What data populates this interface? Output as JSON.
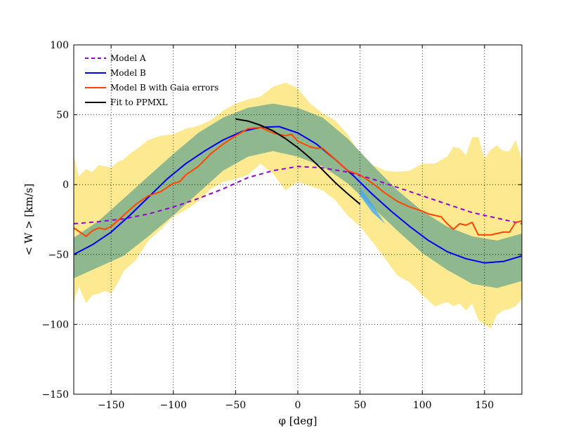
{
  "chart_data": {
    "type": "line",
    "title": "",
    "xlabel": "φ [deg]",
    "ylabel": "< W > [km/s]",
    "xlim": [
      -180,
      180
    ],
    "ylim": [
      -150,
      100
    ],
    "xticks": [
      -150,
      -100,
      -50,
      0,
      50,
      100,
      150
    ],
    "xtick_labels": [
      "−150",
      "−100",
      "−50",
      "0",
      "50",
      "100",
      "150"
    ],
    "yticks": [
      -150,
      -100,
      -50,
      0,
      50,
      100
    ],
    "ytick_labels": [
      "−150",
      "−100",
      "−50",
      "0",
      "50",
      "100"
    ],
    "grid": true,
    "legend_position": "top-left",
    "colors": {
      "model_a": "#9400d3",
      "model_b": "#0000ee",
      "gaia": "#ff4500",
      "ppmxl": "#000000",
      "band_outer": "#fde98f",
      "band_inner": "#8fb88f",
      "band_edge": "#44aaee"
    },
    "series": [
      {
        "name": "Model A",
        "style": "dashed",
        "x": [
          -180,
          -160,
          -140,
          -120,
          -100,
          -80,
          -60,
          -40,
          -20,
          0,
          20,
          40,
          60,
          80,
          100,
          120,
          140,
          160,
          180
        ],
        "y": [
          -28,
          -26.5,
          -24.5,
          -21,
          -16,
          -10,
          -3,
          5,
          10,
          13,
          12,
          9,
          4,
          -2,
          -8,
          -14,
          -20,
          -24,
          -28
        ]
      },
      {
        "name": "Model B",
        "style": "solid",
        "x": [
          -180,
          -165,
          -150,
          -135,
          -120,
          -105,
          -90,
          -75,
          -60,
          -45,
          -30,
          -15,
          0,
          15,
          30,
          45,
          60,
          75,
          90,
          105,
          120,
          135,
          150,
          165,
          180
        ],
        "y": [
          -50,
          -43,
          -34,
          -22,
          -9,
          4,
          15,
          24,
          32,
          38,
          41,
          41.5,
          37,
          29,
          18,
          6,
          -7,
          -19,
          -30,
          -40,
          -48,
          -53,
          -56,
          -55,
          -51
        ]
      },
      {
        "name": "Model B with Gaia errors",
        "style": "solid",
        "x": [
          -180,
          -170,
          -165,
          -160,
          -155,
          -150,
          -140,
          -130,
          -120,
          -110,
          -100,
          -95,
          -90,
          -80,
          -70,
          -60,
          -50,
          -40,
          -30,
          -20,
          -10,
          -5,
          0,
          5,
          10,
          15,
          20,
          30,
          40,
          50,
          60,
          70,
          80,
          90,
          100,
          105,
          110,
          115,
          120,
          125,
          130,
          135,
          140,
          145,
          150,
          155,
          160,
          165,
          170,
          175,
          180
        ],
        "y": [
          -31,
          -37,
          -33,
          -31,
          -32,
          -30,
          -22,
          -14,
          -8,
          -5,
          1,
          2,
          7,
          13,
          22,
          29,
          35,
          40,
          41,
          37,
          35,
          36,
          31,
          29,
          27,
          26,
          26,
          18,
          10,
          7,
          1,
          -6,
          -12,
          -16,
          -19,
          -21,
          -22,
          -23,
          -28,
          -32,
          -28,
          -29,
          -27,
          -36,
          -36,
          -36,
          -35,
          -34,
          -34,
          -27,
          -26
        ]
      },
      {
        "name": "Fit to PPMXL",
        "style": "solid",
        "x": [
          -50,
          -40,
          -30,
          -20,
          -10,
          0,
          10,
          20,
          30,
          40,
          50
        ],
        "y": [
          47,
          45.5,
          42.5,
          38.5,
          33,
          26.5,
          19,
          10.5,
          1.5,
          -6.5,
          -14
        ]
      }
    ],
    "bands": [
      {
        "x": [
          -180,
          -160,
          -140,
          -120,
          -100,
          -80,
          -60,
          -40,
          -20,
          0,
          20,
          40,
          60,
          80,
          100,
          120,
          140,
          160,
          180
        ],
        "upper": [
          -38,
          -26,
          -10,
          6,
          22,
          37,
          48,
          55,
          58,
          55,
          48,
          33,
          14,
          -4,
          -19,
          -30,
          -37,
          -40,
          -35
        ],
        "lower": [
          -67,
          -59,
          -51,
          -37,
          -22,
          -6,
          10,
          20,
          24,
          20,
          13,
          1,
          -16,
          -33,
          -49,
          -61,
          -71,
          -74,
          -69
        ]
      },
      {
        "x": [
          -180,
          -176,
          -170,
          -165,
          -160,
          -155,
          -150,
          -145,
          -140,
          -135,
          -130,
          -120,
          -110,
          -100,
          -90,
          -80,
          -70,
          -60,
          -50,
          -40,
          -30,
          -20,
          -10,
          0,
          10,
          20,
          30,
          40,
          50,
          60,
          70,
          80,
          90,
          100,
          110,
          120,
          125,
          130,
          135,
          140,
          145,
          150,
          155,
          160,
          165,
          170,
          175,
          180
        ],
        "upper": [
          21,
          6,
          11,
          9,
          14,
          13,
          12,
          16,
          18,
          22,
          25,
          32,
          35,
          36,
          40,
          42,
          46,
          53,
          58,
          61,
          63,
          70,
          73,
          69,
          58,
          51,
          46,
          36,
          22,
          14,
          10,
          9,
          10,
          15,
          15,
          20,
          27,
          26,
          21,
          34,
          34,
          19,
          25,
          28,
          24,
          24,
          32,
          18
        ],
        "lower": [
          -84,
          -73,
          -85,
          -79,
          -78,
          -76,
          -78,
          -71,
          -62,
          -58,
          -54,
          -40,
          -32,
          -23,
          -18,
          -12,
          -3,
          2,
          4,
          7,
          15,
          8,
          -4,
          2,
          -1,
          -4,
          -11,
          -22,
          -30,
          -41,
          -53,
          -65,
          -70,
          -79,
          -87,
          -84,
          -87,
          -85,
          -90,
          -85,
          -97,
          -100,
          -103,
          -93,
          -90,
          -89,
          -87,
          -82
        ]
      }
    ]
  }
}
